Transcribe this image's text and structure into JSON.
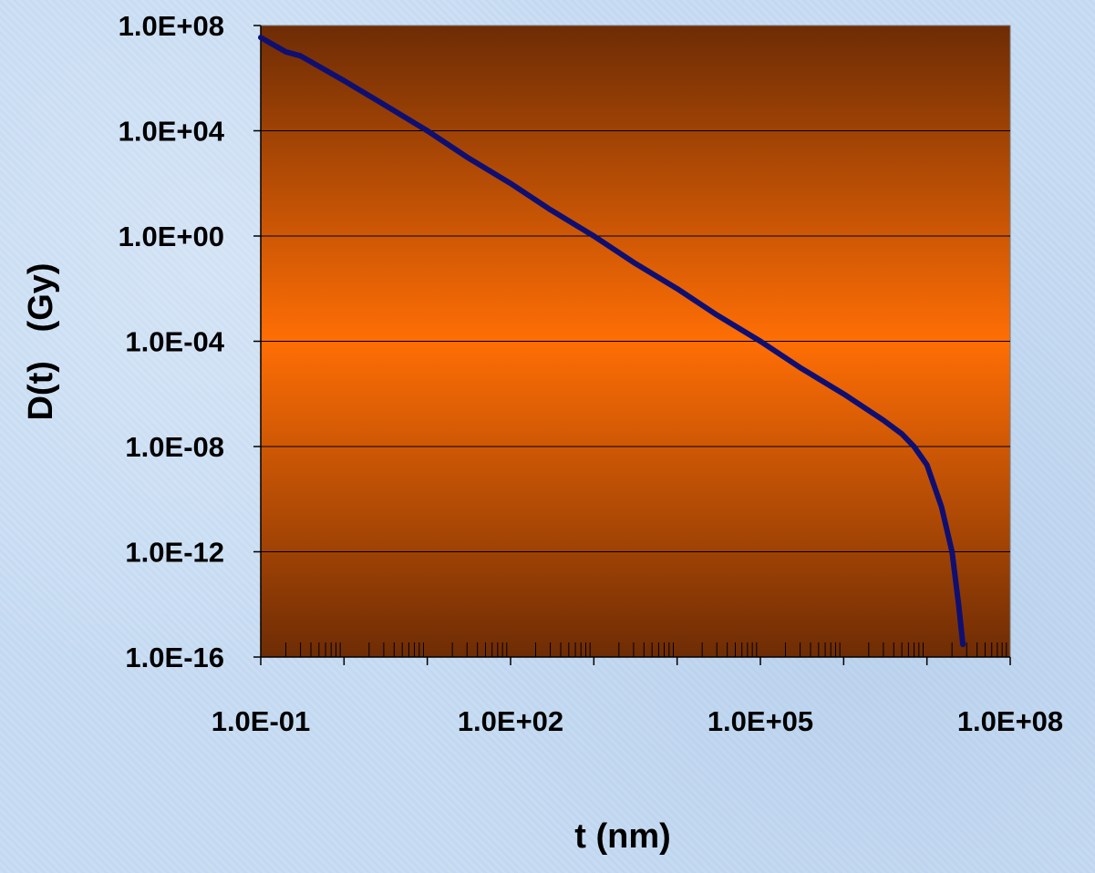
{
  "chart_data": {
    "type": "line",
    "title": "",
    "xlabel": "t (nm)",
    "ylabel": "D(t)   (Gy)",
    "x_scale": "log",
    "y_scale": "log",
    "xlim": [
      0.1,
      100000000
    ],
    "ylim": [
      1e-16,
      100000000
    ],
    "x_tick_values": [
      0.1,
      100,
      100000,
      100000000
    ],
    "x_tick_labels": [
      "1.0E-01",
      "1.0E+02",
      "1.0E+05",
      "1.0E+08"
    ],
    "y_tick_values": [
      100000000,
      10000,
      1,
      0.0001,
      1e-08,
      1e-12,
      1e-16
    ],
    "y_tick_labels": [
      "1.0E+08",
      "1.0E+04",
      "1.0E+00",
      "1.0E-04",
      "1.0E-08",
      "1.0E-12",
      "1.0E-16"
    ],
    "grid": "horizontal",
    "legend": "none",
    "colors": {
      "line": "#0f0f72",
      "plot_dark": "#6e2c05",
      "plot_bright": "#ff6e05"
    },
    "series": [
      {
        "x": [
          0.1,
          0.2,
          0.3,
          1,
          3,
          10,
          30,
          100,
          300,
          1000,
          3000,
          10000,
          30000,
          100000,
          300000,
          1000000,
          3000000,
          5000000,
          7000000,
          10000000,
          15000000,
          20000000,
          24000000,
          27000000
        ],
        "y": [
          35000000,
          10000000,
          7000000,
          800000,
          100000,
          10000,
          1000,
          100,
          10,
          1,
          0.1,
          0.01,
          0.001,
          0.0001,
          1e-05,
          1e-06,
          1e-07,
          3e-08,
          1e-08,
          2e-09,
          5e-11,
          1e-12,
          1e-14,
          3e-16
        ]
      }
    ]
  }
}
